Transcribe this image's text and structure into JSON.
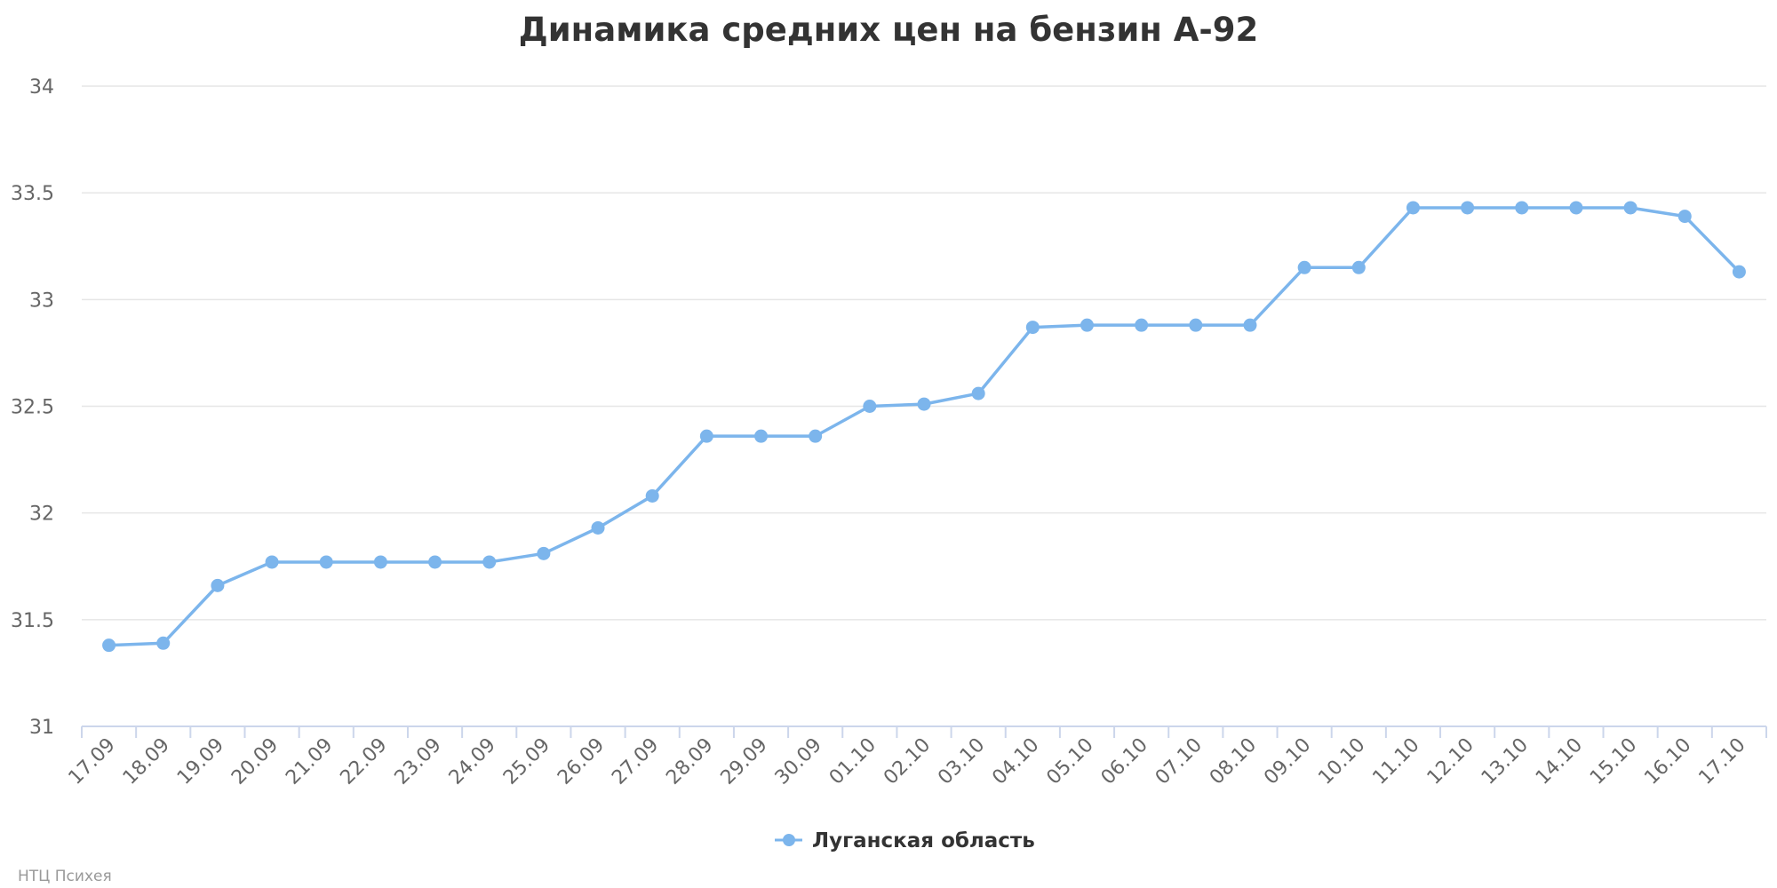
{
  "chart_data": {
    "type": "line",
    "title": "Динамика средних цен на бензин А-92",
    "categories": [
      "17.09",
      "18.09",
      "19.09",
      "20.09",
      "21.09",
      "22.09",
      "23.09",
      "24.09",
      "25.09",
      "26.09",
      "27.09",
      "28.09",
      "29.09",
      "30.09",
      "01.10",
      "02.10",
      "03.10",
      "04.10",
      "05.10",
      "06.10",
      "07.10",
      "08.10",
      "09.10",
      "10.10",
      "11.10",
      "12.10",
      "13.10",
      "14.10",
      "15.10",
      "16.10",
      "17.10"
    ],
    "series": [
      {
        "name": "Луганская область",
        "color": "#7cb5ec",
        "values": [
          31.38,
          31.39,
          31.66,
          31.77,
          31.77,
          31.77,
          31.77,
          31.77,
          31.81,
          31.93,
          32.08,
          32.36,
          32.36,
          32.36,
          32.5,
          32.51,
          32.56,
          32.87,
          32.88,
          32.88,
          32.88,
          32.88,
          33.15,
          33.15,
          33.43,
          33.43,
          33.43,
          33.43,
          33.43,
          33.39,
          33.13
        ]
      }
    ],
    "ylim": [
      31,
      34
    ],
    "yticks": [
      "31",
      "31.5",
      "32",
      "32.5",
      "33",
      "33.5",
      "34"
    ],
    "grid": true,
    "legend_position": "bottom-center",
    "credits": "НТЦ Психея"
  }
}
